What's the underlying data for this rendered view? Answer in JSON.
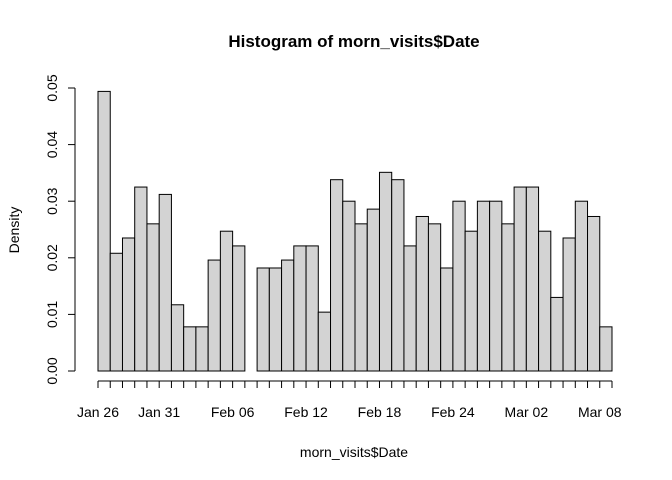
{
  "chart_data": {
    "type": "bar",
    "title": "Histogram of morn_visits$Date",
    "xlabel": "morn_visits$Date",
    "ylabel": "Density",
    "ylim": [
      0,
      0.05
    ],
    "y_ticks": [
      "0.00",
      "0.01",
      "0.02",
      "0.03",
      "0.04",
      "0.05"
    ],
    "y_tick_values": [
      0,
      0.01,
      0.02,
      0.03,
      0.04,
      0.05
    ],
    "x_range": [
      "Jan 26",
      "Mar 09"
    ],
    "x_tick_labels": [
      "Jan 26",
      "Jan 31",
      "Feb 06",
      "Feb 12",
      "Feb 18",
      "Feb 24",
      "Mar 02",
      "Mar 08"
    ],
    "x_tick_label_positions": [
      0,
      5,
      11,
      17,
      23,
      29,
      35,
      41
    ],
    "bin_width_days": 1,
    "values": [
      0.0494,
      0.0208,
      0.0235,
      0.0325,
      0.026,
      0.0312,
      0.0117,
      0.0078,
      0.0078,
      0.0196,
      0.0247,
      0.0221,
      0.0,
      0.0182,
      0.0182,
      0.0196,
      0.0221,
      0.0221,
      0.0104,
      0.0338,
      0.03,
      0.026,
      0.0286,
      0.0351,
      0.0338,
      0.0221,
      0.0273,
      0.026,
      0.0182,
      0.03,
      0.0247,
      0.03,
      0.03,
      0.026,
      0.0325,
      0.0325,
      0.0247,
      0.013,
      0.0235,
      0.03,
      0.0273,
      0.0078
    ],
    "bar_fill": "#d3d3d3",
    "bar_stroke": "#000000"
  }
}
